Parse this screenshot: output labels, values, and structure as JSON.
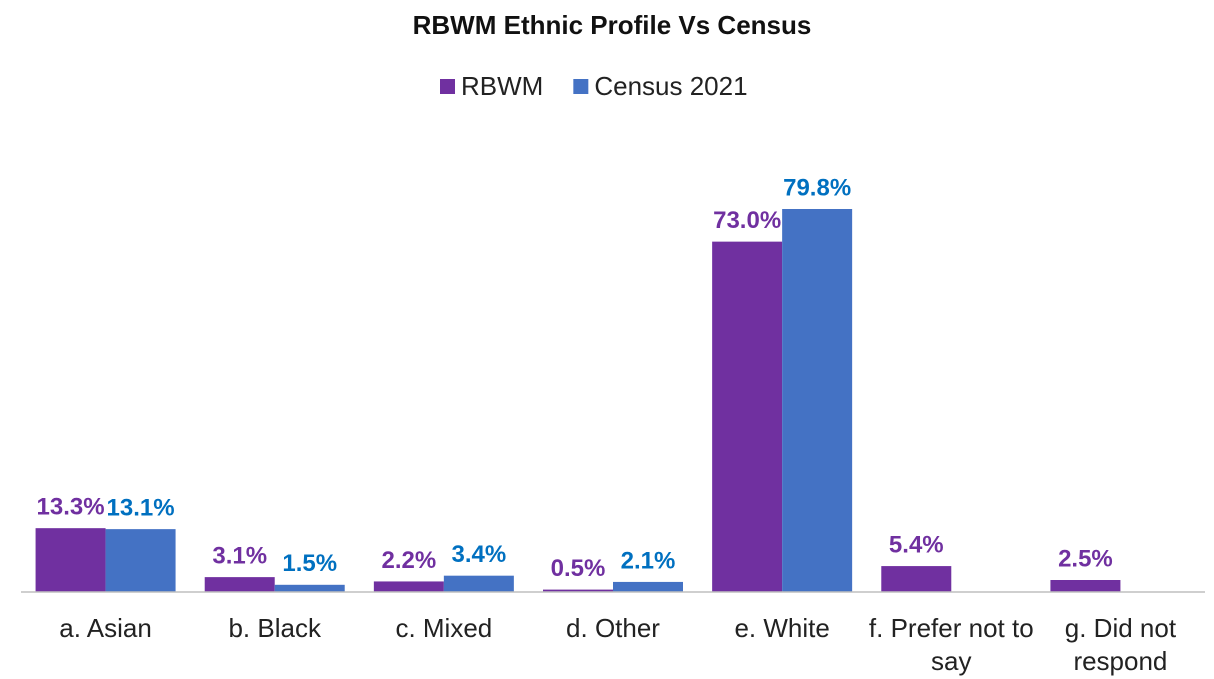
{
  "chart_data": {
    "type": "bar",
    "title": "RBWM Ethnic Profile Vs Census",
    "categories": [
      "a. Asian",
      "b. Black",
      "c. Mixed",
      "d. Other",
      "e. White",
      "f. Prefer not to say",
      "g. Did not respond"
    ],
    "series": [
      {
        "name": "RBWM",
        "color": "#7030a0",
        "label_color": "#7030a0",
        "values": [
          13.3,
          3.1,
          2.2,
          0.5,
          73.0,
          5.4,
          2.5
        ],
        "value_labels": [
          "13.3%",
          "3.1%",
          "2.2%",
          "0.5%",
          "73.0%",
          "5.4%",
          "2.5%"
        ]
      },
      {
        "name": "Census 2021",
        "color": "#4472c4",
        "label_color": "#0070c0",
        "values": [
          13.1,
          1.5,
          3.4,
          2.1,
          79.8,
          null,
          null
        ],
        "value_labels": [
          "13.1%",
          "1.5%",
          "3.4%",
          "2.1%",
          "79.8%",
          null,
          null
        ]
      }
    ],
    "legend": "top"
  }
}
